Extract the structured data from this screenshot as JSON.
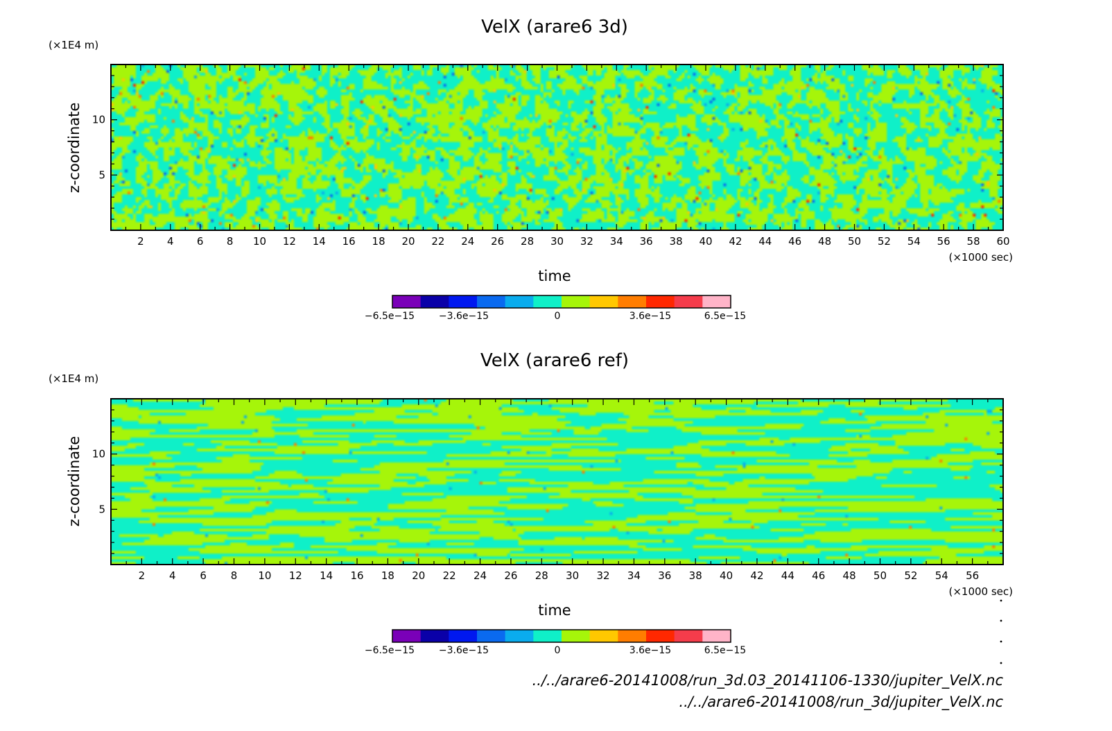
{
  "chart_data": [
    {
      "type": "heatmap",
      "title": "VelX (arare6 3d)",
      "ylabel": "z-coordinate",
      "yunit": "(×1E4 m)",
      "xlabel": "time",
      "xunit": "(×1000 sec)",
      "xlim": [
        0,
        60
      ],
      "ylim": [
        0,
        15
      ],
      "xticks": [
        2,
        4,
        6,
        8,
        10,
        12,
        14,
        16,
        18,
        20,
        22,
        24,
        26,
        28,
        30,
        32,
        34,
        36,
        38,
        40,
        42,
        44,
        46,
        48,
        50,
        52,
        54,
        56,
        58,
        60
      ],
      "yticks": [
        5,
        10
      ],
      "pattern": "isotropic",
      "colorbar": {
        "min": -6.5e-15,
        "max": 6.5e-15,
        "labels": [
          "−6.5e−15",
          "−3.6e−15",
          "0",
          "3.6e−15",
          "6.5e−15"
        ],
        "label_values": [
          -6.5e-15,
          -3.6e-15,
          0,
          3.6e-15,
          6.5e-15
        ]
      }
    },
    {
      "type": "heatmap",
      "title": "VelX (arare6 ref)",
      "ylabel": "z-coordinate",
      "yunit": "(×1E4 m)",
      "xlabel": "time",
      "xunit": "(×1000 sec)",
      "xlim": [
        0,
        58
      ],
      "ylim": [
        0,
        15
      ],
      "xticks": [
        2,
        4,
        6,
        8,
        10,
        12,
        14,
        16,
        18,
        20,
        22,
        24,
        26,
        28,
        30,
        32,
        34,
        36,
        38,
        40,
        42,
        44,
        46,
        48,
        50,
        52,
        54,
        56
      ],
      "yticks": [
        5,
        10
      ],
      "pattern": "streaks",
      "colorbar": {
        "min": -6.5e-15,
        "max": 6.5e-15,
        "labels": [
          "−6.5e−15",
          "−3.6e−15",
          "0",
          "3.6e−15",
          "6.5e−15"
        ],
        "label_values": [
          -6.5e-15,
          -3.6e-15,
          0,
          3.6e-15,
          6.5e-15
        ]
      }
    }
  ],
  "colormap": [
    "#7a00b8",
    "#0a00a8",
    "#0018f0",
    "#0a6af0",
    "#0aacee",
    "#0ff0c8",
    "#a6f50a",
    "#ffc800",
    "#ff7d00",
    "#ff2800",
    "#f53c4b",
    "#ffb4c8"
  ],
  "footer": {
    "path1": "../../arare6-20141008/run_3d.03_20141106-1330/jupiter_VelX.nc",
    "path2": "../../arare6-20141008/run_3d/jupiter_VelX.nc"
  }
}
